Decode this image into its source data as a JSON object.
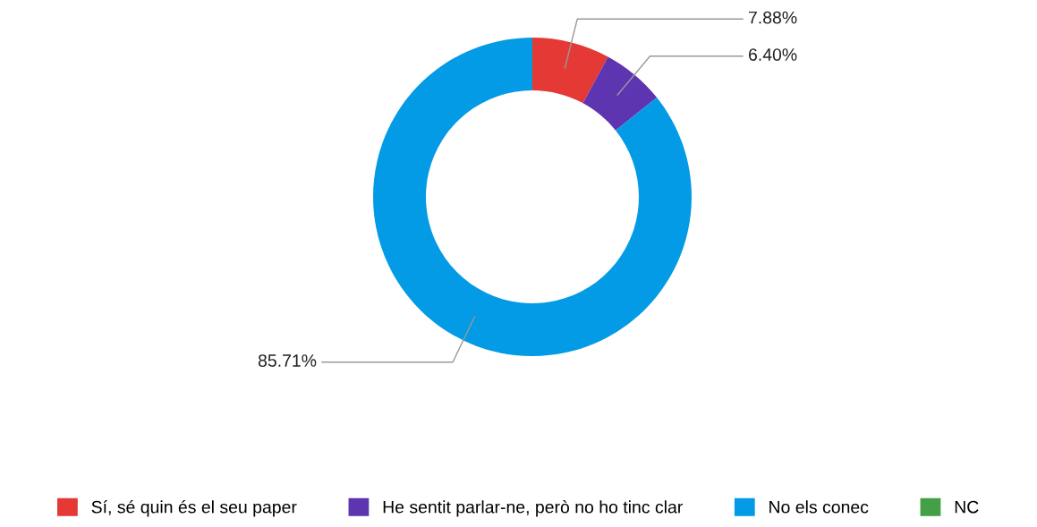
{
  "chart_data": {
    "type": "donut",
    "categories": [
      "Sí, sé quin és el seu paper",
      "He sentit parlar-ne, però no ho tinc clar",
      "No els conec",
      "NC"
    ],
    "values": [
      7.88,
      6.4,
      85.71,
      0
    ],
    "colors": [
      "#e53935",
      "#5e35b1",
      "#039be5",
      "#43a047"
    ],
    "value_labels": [
      "7.88%",
      "6.40%",
      "85.71%",
      null
    ],
    "legend": "bottom"
  }
}
